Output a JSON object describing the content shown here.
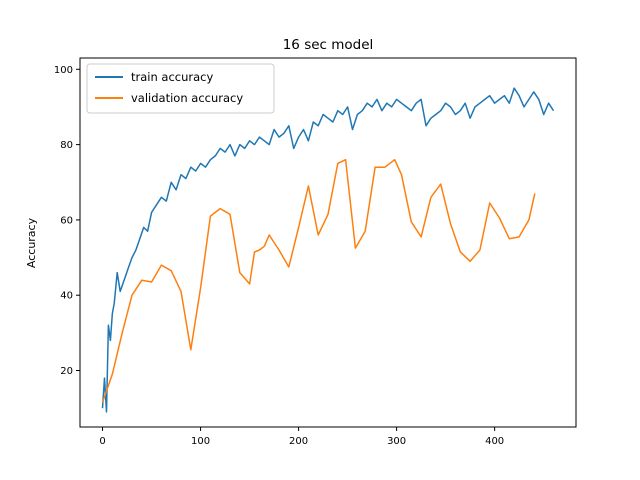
{
  "chart_data": {
    "type": "line",
    "title": "16 sec model",
    "xlabel": "",
    "ylabel": "Accuracy",
    "xlim": [
      -23,
      483
    ],
    "ylim": [
      5,
      103
    ],
    "xticks": [
      0,
      100,
      200,
      300,
      400
    ],
    "yticks": [
      20,
      40,
      60,
      80,
      100
    ],
    "grid": false,
    "legend_position": "top-left",
    "series": [
      {
        "name": "train accuracy",
        "color": "#1f77b4",
        "x": [
          0,
          2,
          4,
          6,
          8,
          10,
          12,
          15,
          18,
          22,
          26,
          30,
          34,
          38,
          42,
          46,
          50,
          55,
          60,
          65,
          70,
          75,
          80,
          85,
          90,
          95,
          100,
          105,
          110,
          115,
          120,
          125,
          130,
          135,
          140,
          145,
          150,
          155,
          160,
          165,
          170,
          175,
          180,
          185,
          190,
          195,
          200,
          205,
          210,
          215,
          220,
          225,
          230,
          235,
          240,
          245,
          250,
          255,
          260,
          265,
          270,
          275,
          280,
          285,
          290,
          295,
          300,
          305,
          310,
          315,
          320,
          325,
          330,
          335,
          340,
          345,
          350,
          355,
          360,
          365,
          370,
          375,
          380,
          385,
          390,
          395,
          400,
          405,
          410,
          415,
          420,
          425,
          430,
          435,
          440,
          445,
          450,
          455,
          460
        ],
        "values": [
          10,
          18,
          9,
          32,
          28,
          35,
          38,
          46,
          41,
          44,
          47,
          50,
          52,
          55,
          58,
          57,
          62,
          64,
          66,
          65,
          70,
          68,
          72,
          71,
          74,
          73,
          75,
          74,
          76,
          77,
          79,
          78,
          80,
          77,
          80,
          79,
          81,
          80,
          82,
          81,
          80,
          84,
          82,
          83,
          85,
          79,
          82,
          84,
          81,
          86,
          85,
          88,
          87,
          86,
          89,
          88,
          90,
          84,
          88,
          89,
          91,
          90,
          92,
          89,
          91,
          90,
          92,
          91,
          90,
          89,
          91,
          92,
          85,
          87,
          88,
          89,
          91,
          90,
          88,
          89,
          91,
          87,
          90,
          91,
          92,
          93,
          91,
          92,
          93,
          91,
          95,
          93,
          90,
          92,
          94,
          92,
          88,
          91,
          89
        ]
      },
      {
        "name": "validation accuracy",
        "color": "#ff7f0e",
        "x": [
          0,
          10,
          20,
          30,
          40,
          50,
          60,
          70,
          80,
          90,
          100,
          110,
          120,
          130,
          140,
          150,
          155,
          160,
          165,
          170,
          180,
          190,
          200,
          210,
          220,
          230,
          240,
          248,
          258,
          268,
          278,
          288,
          298,
          305,
          315,
          325,
          335,
          345,
          355,
          365,
          375,
          385,
          395,
          405,
          415,
          425,
          435,
          441
        ],
        "values": [
          11.5,
          19,
          30,
          40,
          44,
          43.5,
          48,
          46.5,
          41,
          25.5,
          42,
          61,
          63,
          61.5,
          46,
          43,
          51.5,
          52,
          53,
          56,
          52,
          47.5,
          58,
          69,
          56,
          61.5,
          75,
          76,
          52.5,
          57,
          74,
          74,
          76,
          72,
          59.5,
          55.5,
          66,
          69.5,
          59,
          51.5,
          49,
          52,
          64.5,
          60.5,
          55,
          55.5,
          60,
          67
        ]
      }
    ]
  }
}
